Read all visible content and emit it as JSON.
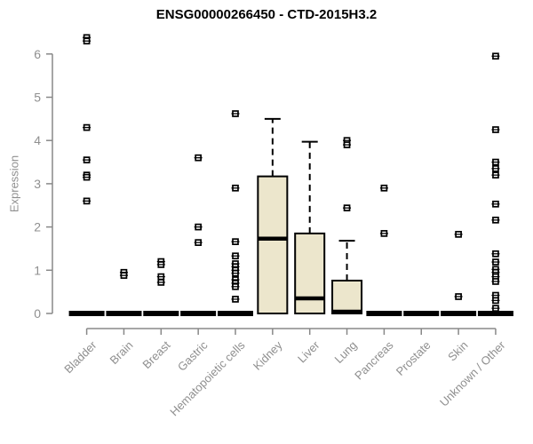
{
  "title": "ENSG00000266450 - CTD-2015H3.2",
  "chart_data": {
    "type": "boxplot",
    "title": "ENSG00000266450 - CTD-2015H3.2",
    "xlabel": "",
    "ylabel": "Expression",
    "ylim": [
      0,
      6.5
    ],
    "yticks": [
      0,
      1,
      2,
      3,
      4,
      5,
      6
    ],
    "grid": false,
    "legend": "none",
    "colors": {
      "box_fill": "#ece6cc",
      "box_border": "#000000",
      "axis": "#888888",
      "tick_label": "#8f8f8f",
      "title": "#000000"
    },
    "categories": [
      "Bladder",
      "Brain",
      "Breast",
      "Gastric",
      "Hematopoietic cells",
      "Kidney",
      "Liver",
      "Lung",
      "Pancreas",
      "Prostate",
      "Skin",
      "Unknown / Other"
    ],
    "series": [
      {
        "category": "Bladder",
        "whisker_low": 0,
        "q1": 0,
        "median": 0,
        "q3": 0,
        "whisker_high": 0,
        "outliers": [
          6.38,
          6.3,
          4.3,
          3.55,
          3.2,
          3.15,
          2.6
        ]
      },
      {
        "category": "Brain",
        "whisker_low": 0,
        "q1": 0,
        "median": 0,
        "q3": 0,
        "whisker_high": 0,
        "outliers": [
          0.95,
          0.88
        ]
      },
      {
        "category": "Breast",
        "whisker_low": 0,
        "q1": 0,
        "median": 0,
        "q3": 0,
        "whisker_high": 0,
        "outliers": [
          1.2,
          1.13,
          0.85,
          0.72
        ]
      },
      {
        "category": "Gastric",
        "whisker_low": 0,
        "q1": 0,
        "median": 0,
        "q3": 0,
        "whisker_high": 0,
        "outliers": [
          3.6,
          2.0,
          1.64
        ]
      },
      {
        "category": "Hematopoietic cells",
        "whisker_low": 0,
        "q1": 0,
        "median": 0,
        "q3": 0,
        "whisker_high": 0,
        "outliers": [
          4.62,
          2.9,
          1.66,
          1.33,
          1.15,
          1.08,
          1.0,
          0.93,
          0.78,
          0.7,
          0.62,
          0.33
        ]
      },
      {
        "category": "Kidney",
        "whisker_low": 0,
        "q1": 0,
        "median": 1.73,
        "q3": 3.17,
        "whisker_high": 4.5,
        "outliers": []
      },
      {
        "category": "Liver",
        "whisker_low": 0,
        "q1": 0,
        "median": 0.35,
        "q3": 1.85,
        "whisker_high": 3.97,
        "outliers": []
      },
      {
        "category": "Lung",
        "whisker_low": 0,
        "q1": 0,
        "median": 0.04,
        "q3": 0.76,
        "whisker_high": 1.68,
        "outliers": [
          4.0,
          3.9,
          2.44
        ]
      },
      {
        "category": "Pancreas",
        "whisker_low": 0,
        "q1": 0,
        "median": 0,
        "q3": 0,
        "whisker_high": 0,
        "outliers": [
          2.9,
          1.85
        ]
      },
      {
        "category": "Prostate",
        "whisker_low": 0,
        "q1": 0,
        "median": 0,
        "q3": 0,
        "whisker_high": 0,
        "outliers": []
      },
      {
        "category": "Skin",
        "whisker_low": 0,
        "q1": 0,
        "median": 0,
        "q3": 0,
        "whisker_high": 0,
        "outliers": [
          1.83,
          0.39
        ]
      },
      {
        "category": "Unknown / Other",
        "whisker_low": 0,
        "q1": 0,
        "median": 0,
        "q3": 0,
        "whisker_high": 0,
        "outliers": [
          5.95,
          4.25,
          3.5,
          3.35,
          3.2,
          2.53,
          2.16,
          1.38,
          1.19,
          1.02,
          0.95,
          0.85,
          0.74,
          0.42,
          0.3,
          0.12
        ]
      }
    ]
  }
}
